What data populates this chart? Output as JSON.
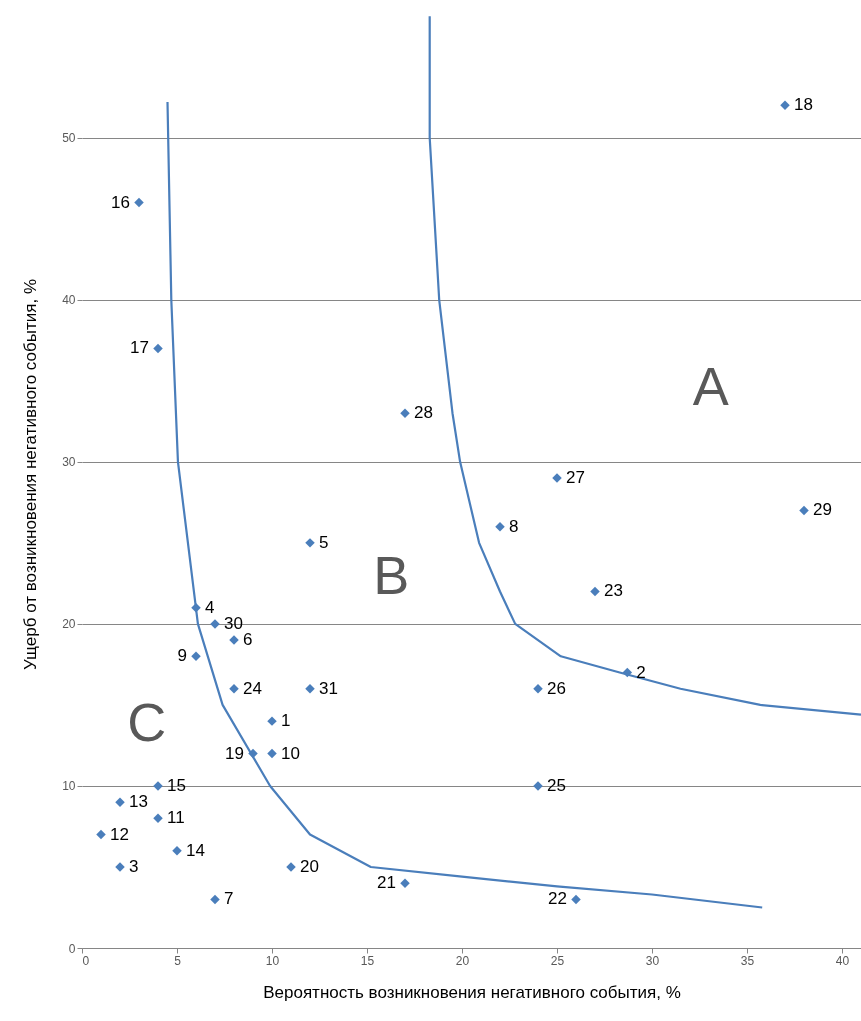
{
  "chart_data": {
    "type": "scatter",
    "xlabel": "Вероятность возникновения негативного события, %",
    "ylabel": "Ущерб от возникновения негативного события, %",
    "xlim": [
      0,
      41
    ],
    "ylim": [
      0,
      58.5
    ],
    "xticks": [
      0,
      5,
      10,
      15,
      20,
      25,
      30,
      35,
      40
    ],
    "yticks": [
      0,
      10,
      20,
      30,
      40,
      50
    ],
    "grid": "y",
    "marker": "diamond",
    "annotations": [
      "A",
      "B",
      "C"
    ],
    "series": [
      {
        "name": "1",
        "color": "#4a7ebb",
        "x": [
          10
        ],
        "values": [
          14
        ]
      },
      {
        "name": "2",
        "color": "#4a7ebb",
        "x": [
          28.7
        ],
        "values": [
          17
        ]
      },
      {
        "name": "3",
        "color": "#4a7ebb",
        "x": [
          2
        ],
        "values": [
          5
        ]
      },
      {
        "name": "4",
        "color": "#4a7ebb",
        "x": [
          6
        ],
        "values": [
          21
        ]
      },
      {
        "name": "5",
        "color": "#4a7ebb",
        "x": [
          12
        ],
        "values": [
          25
        ]
      },
      {
        "name": "6",
        "color": "#4a7ebb",
        "x": [
          8
        ],
        "values": [
          19
        ]
      },
      {
        "name": "7",
        "color": "#4a7ebb",
        "x": [
          7
        ],
        "values": [
          3
        ]
      },
      {
        "name": "8",
        "color": "#4a7ebb",
        "x": [
          22
        ],
        "values": [
          26
        ]
      },
      {
        "name": "9",
        "color": "#4a7ebb",
        "x": [
          6
        ],
        "values": [
          18
        ]
      },
      {
        "name": "10",
        "color": "#4a7ebb",
        "x": [
          10
        ],
        "values": [
          12
        ]
      },
      {
        "name": "11",
        "color": "#4a7ebb",
        "x": [
          4
        ],
        "values": [
          8
        ]
      },
      {
        "name": "12",
        "color": "#4a7ebb",
        "x": [
          1
        ],
        "values": [
          7
        ]
      },
      {
        "name": "13",
        "color": "#4a7ebb",
        "x": [
          2
        ],
        "values": [
          9
        ]
      },
      {
        "name": "14",
        "color": "#4a7ebb",
        "x": [
          5
        ],
        "values": [
          6
        ]
      },
      {
        "name": "15",
        "color": "#4a7ebb",
        "x": [
          4
        ],
        "values": [
          10
        ]
      },
      {
        "name": "16",
        "color": "#4a7ebb",
        "x": [
          3
        ],
        "values": [
          46
        ]
      },
      {
        "name": "17",
        "color": "#4a7ebb",
        "x": [
          4
        ],
        "values": [
          37
        ]
      },
      {
        "name": "18",
        "color": "#4a7ebb",
        "x": [
          37
        ],
        "values": [
          52
        ]
      },
      {
        "name": "19",
        "color": "#4a7ebb",
        "x": [
          9
        ],
        "values": [
          12
        ]
      },
      {
        "name": "20",
        "color": "#4a7ebb",
        "x": [
          11
        ],
        "values": [
          5
        ]
      },
      {
        "name": "21",
        "color": "#4a7ebb",
        "x": [
          17
        ],
        "values": [
          4
        ]
      },
      {
        "name": "22",
        "color": "#4a7ebb",
        "x": [
          26
        ],
        "values": [
          3
        ]
      },
      {
        "name": "23",
        "color": "#4a7ebb",
        "x": [
          27
        ],
        "values": [
          22
        ]
      },
      {
        "name": "24",
        "color": "#4a7ebb",
        "x": [
          8
        ],
        "values": [
          16
        ]
      },
      {
        "name": "25",
        "color": "#4a7ebb",
        "x": [
          24
        ],
        "values": [
          10
        ]
      },
      {
        "name": "26",
        "color": "#4a7ebb",
        "x": [
          24
        ],
        "values": [
          16
        ]
      },
      {
        "name": "27",
        "color": "#4a7ebb",
        "x": [
          25
        ],
        "values": [
          29
        ]
      },
      {
        "name": "28",
        "color": "#4a7ebb",
        "x": [
          17
        ],
        "values": [
          33
        ]
      },
      {
        "name": "29",
        "color": "#4a7ebb",
        "x": [
          38
        ],
        "values": [
          27
        ]
      },
      {
        "name": "30",
        "color": "#4a7ebb",
        "x": [
          7
        ],
        "values": [
          20
        ]
      },
      {
        "name": "31",
        "color": "#4a7ebb",
        "x": [
          12
        ],
        "values": [
          16
        ]
      },
      {
        "type": "line",
        "color": "#4a7ebb",
        "line_style": "solid",
        "marker": "none",
        "x": [
          4.5,
          4.7,
          5.05,
          6.1,
          7.4,
          9.9,
          12,
          15.2,
          20,
          25,
          30,
          35.8
        ],
        "values": [
          52.2,
          40,
          30,
          20,
          15,
          10,
          7,
          5,
          4.4,
          3.8,
          3.3,
          2.5
        ]
      },
      {
        "type": "line",
        "color": "#4a7ebb",
        "line_style": "solid",
        "marker": "none",
        "x": [
          18.3,
          18.3,
          18.8,
          19.5,
          19.9,
          20.9,
          22,
          22.8,
          25.2,
          28.3,
          31.5,
          35.7,
          41
        ],
        "values": [
          57.5,
          50,
          40,
          33,
          30,
          25,
          22,
          20,
          18,
          17,
          16,
          15,
          14.4
        ]
      }
    ]
  }
}
